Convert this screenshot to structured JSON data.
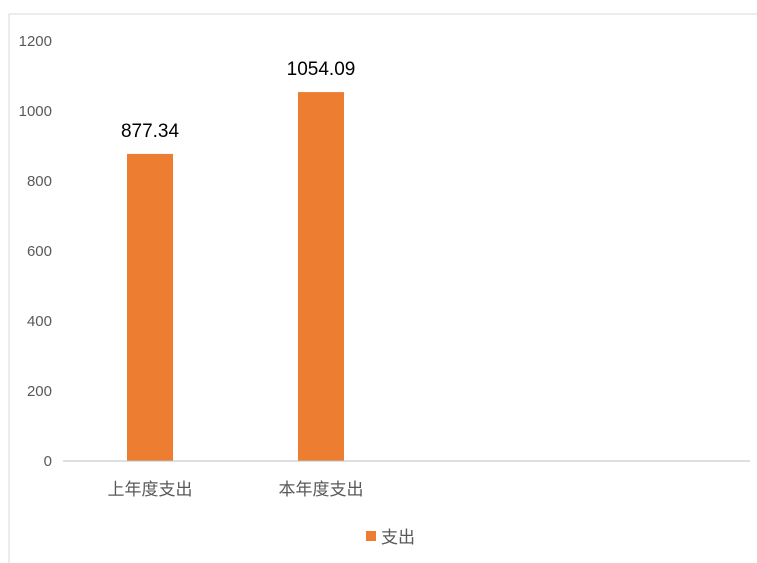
{
  "chart_data": {
    "type": "bar",
    "categories": [
      "上年度支出",
      "本年度支出"
    ],
    "series": [
      {
        "name": "支出",
        "values": [
          877.34,
          1054.09
        ],
        "color": "#ED7D31"
      }
    ],
    "data_labels": [
      "877.34",
      "1054.09"
    ],
    "yticks": [
      0,
      200,
      400,
      600,
      800,
      1000,
      1200
    ],
    "ylim": [
      0,
      1200
    ],
    "grid": false,
    "legend": "bottom",
    "title": "",
    "xlabel": "",
    "ylabel": ""
  },
  "colors": {
    "bar": "#ED7D31",
    "axis": "#BFBFBF",
    "frame": "#D9D9D9"
  }
}
